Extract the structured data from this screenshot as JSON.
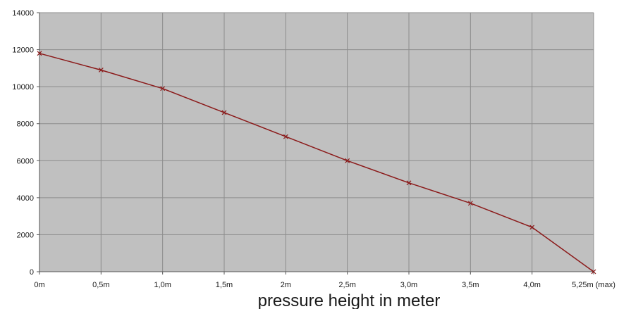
{
  "chart_data": {
    "type": "line",
    "title": "",
    "xlabel": "pressure height in meter",
    "ylabel": "",
    "categories": [
      "0m",
      "0,5m",
      "1,0m",
      "1,5m",
      "2m",
      "2,5m",
      "3,0m",
      "3,5m",
      "4,0m",
      "5,25m (max)"
    ],
    "series": [
      {
        "values": [
          11800,
          10900,
          9900,
          8600,
          7300,
          6000,
          4800,
          3700,
          2400,
          0
        ]
      }
    ],
    "ylim": [
      0,
      14000
    ],
    "yticks": [
      0,
      2000,
      4000,
      6000,
      8000,
      10000,
      12000,
      14000
    ],
    "grid": true,
    "legend": "none",
    "colors": {
      "plot_background": "#c0c0c0",
      "grid": "#8c8c8c",
      "line": "#8b1a1a",
      "axis": "#555555"
    }
  }
}
